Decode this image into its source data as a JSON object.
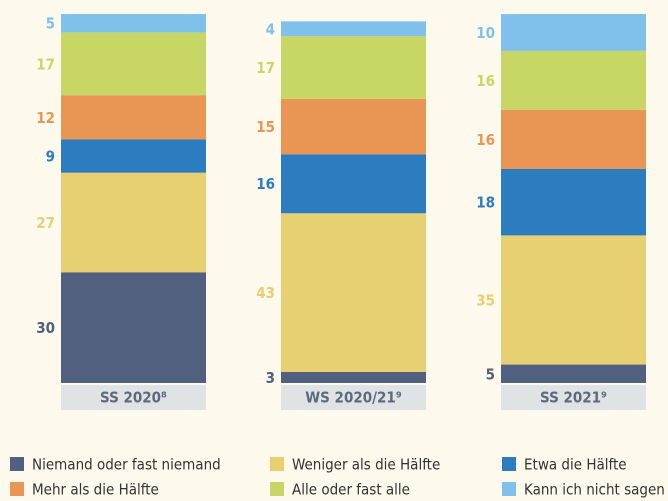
{
  "chart_data": {
    "type": "stacked_bar",
    "categories": [
      "SS 2020⁸",
      "WS 2020/21⁹",
      "SS 2021⁹"
    ],
    "series": [
      {
        "name": "Niemand oder fast niemand",
        "color": "#51607e",
        "values": [
          30,
          3,
          5
        ]
      },
      {
        "name": "Weniger als die Hälfte",
        "color": "#e6d072",
        "values": [
          27,
          43,
          35
        ]
      },
      {
        "name": "Etwa die Hälfte",
        "color": "#2c7cc0",
        "values": [
          9,
          16,
          18
        ]
      },
      {
        "name": "Mehr als die Hälfte",
        "color": "#e99654",
        "values": [
          12,
          15,
          16
        ]
      },
      {
        "name": "Alle oder fast alle",
        "color": "#c7d665",
        "values": [
          17,
          17,
          16
        ]
      },
      {
        "name": "Kann ich nicht sagen",
        "color": "#7fc1eb",
        "values": [
          5,
          4,
          10
        ]
      }
    ],
    "ylim": [
      0,
      100
    ]
  }
}
